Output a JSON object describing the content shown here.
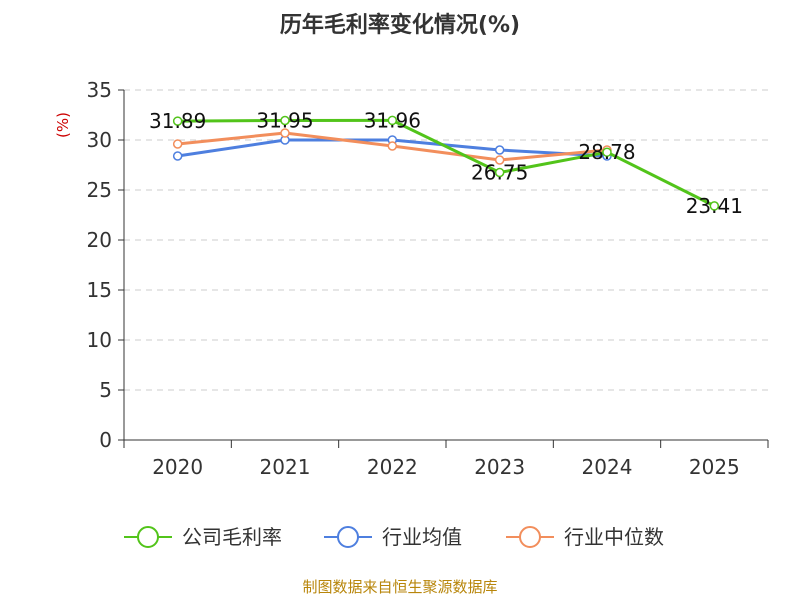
{
  "chart_data": {
    "type": "line",
    "title": "历年毛利率变化情况(%)",
    "unit_label": "(%)",
    "categories": [
      "2020",
      "2021",
      "2022",
      "2023",
      "2024",
      "2025"
    ],
    "ylim": [
      0,
      35
    ],
    "yticks": [
      0,
      5,
      10,
      15,
      20,
      25,
      30,
      35
    ],
    "grid": true,
    "legend_position": "bottom",
    "series": [
      {
        "name": "公司毛利率",
        "color": "#52c41a",
        "values": [
          31.89,
          31.95,
          31.96,
          26.75,
          28.78,
          23.41
        ],
        "data_labels": [
          "31.89",
          "31.95",
          "31.96",
          "26.75",
          "28.78",
          "23.41"
        ]
      },
      {
        "name": "行业均值",
        "color": "#4e7fdf",
        "values": [
          28.4,
          30.0,
          30.0,
          29.0,
          28.4,
          null
        ]
      },
      {
        "name": "行业中位数",
        "color": "#f28e5c",
        "values": [
          29.6,
          30.7,
          29.4,
          28.0,
          29.0,
          null
        ]
      }
    ]
  },
  "source_text": "制图数据来自恒生聚源数据库",
  "colors": {
    "unit_label": "#cc0000",
    "source": "#b8860b",
    "grid": "#cccccc",
    "axis": "#333333"
  }
}
